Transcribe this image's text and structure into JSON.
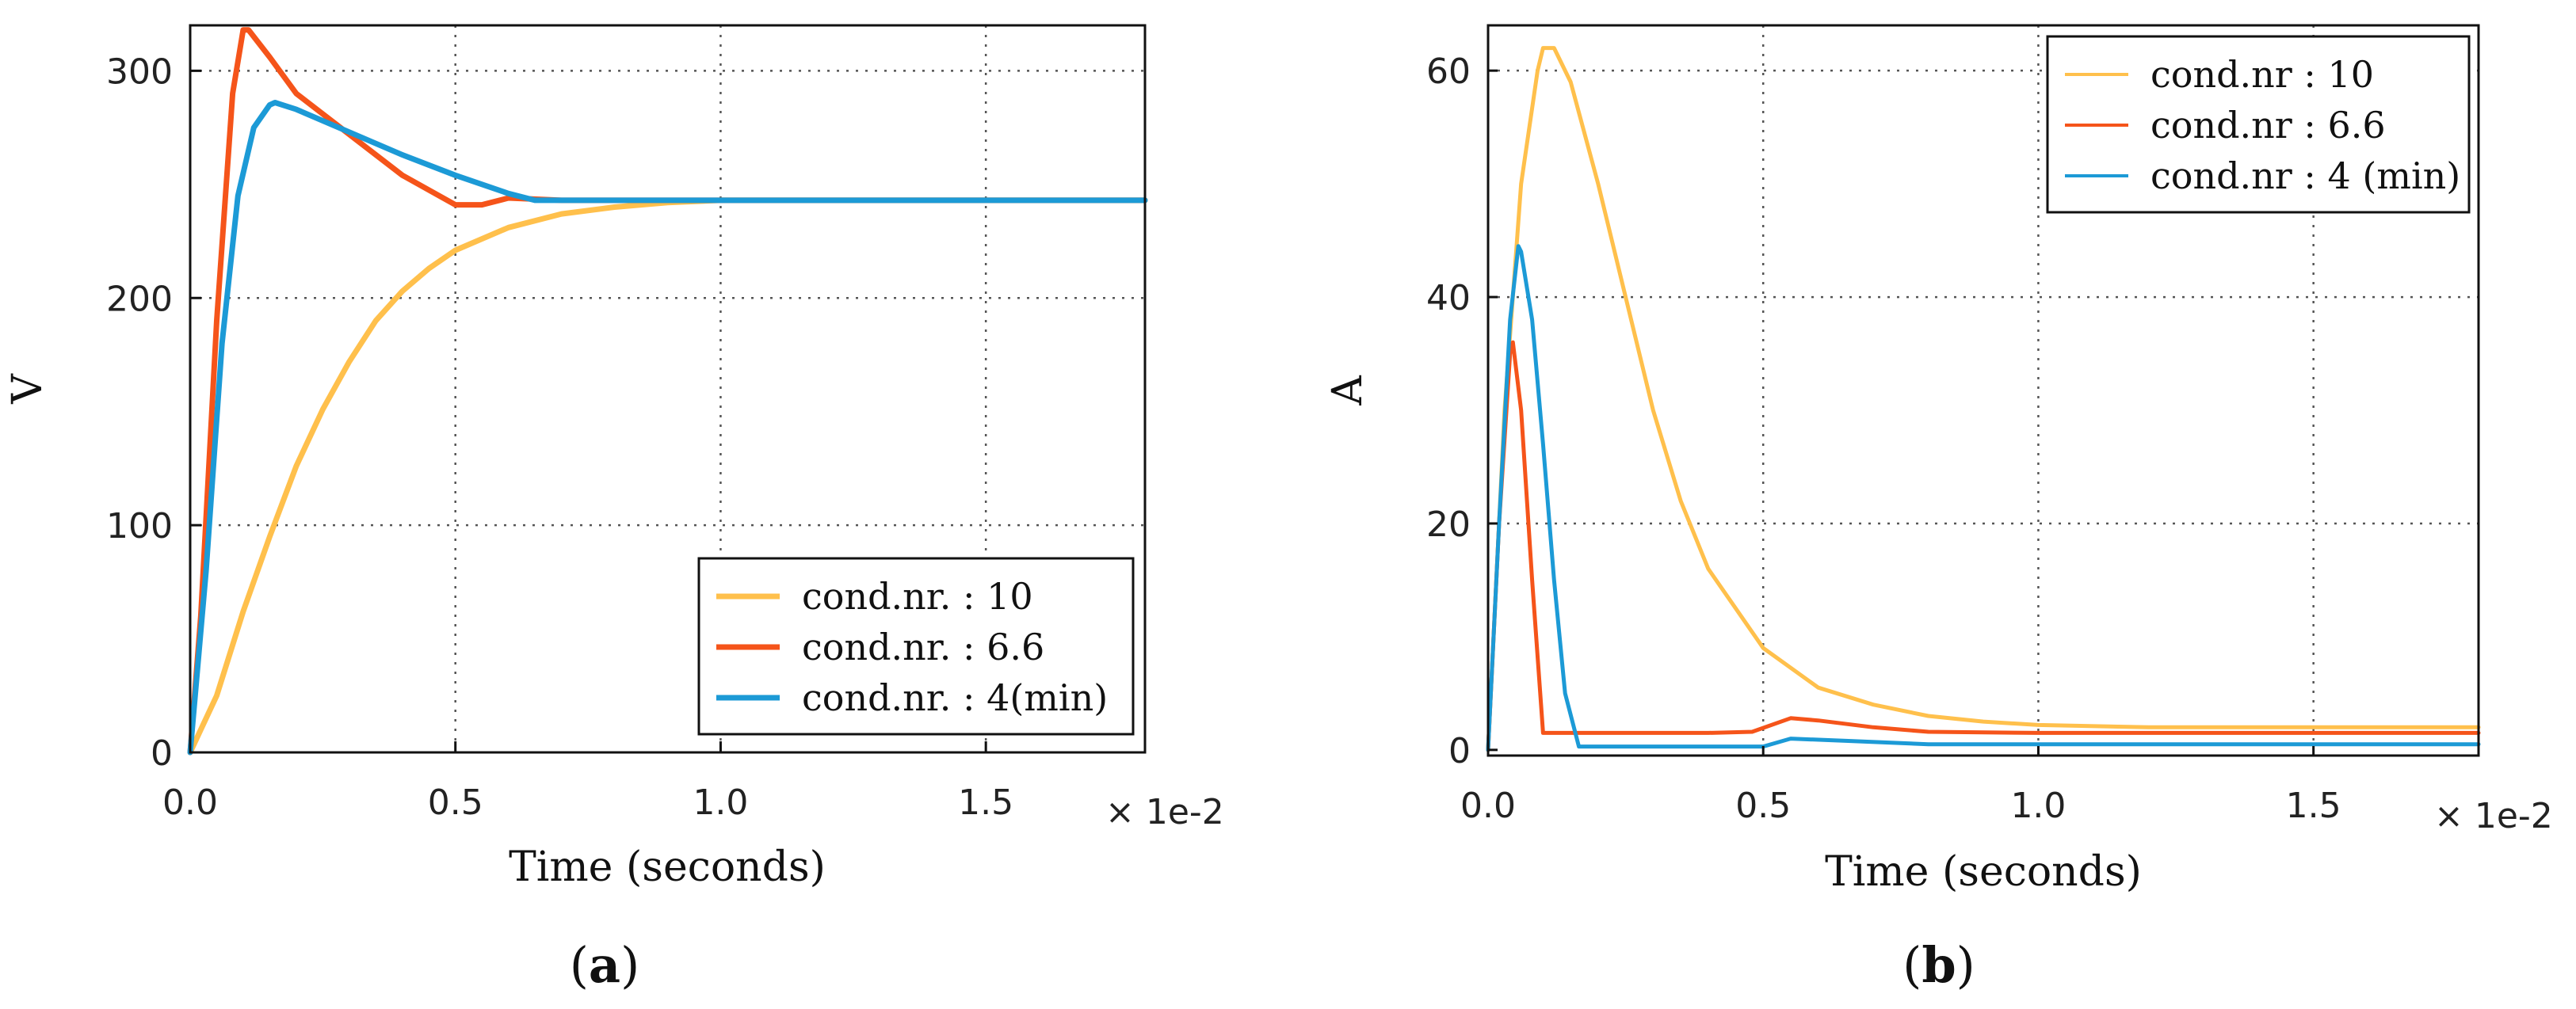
{
  "chart_data": [
    {
      "type": "line",
      "panel_label": "a",
      "xlabel": "Time (seconds)",
      "ylabel": "V",
      "x_multiplier": "× 1e-2",
      "xlim": [
        0,
        1.8
      ],
      "ylim": [
        0,
        320
      ],
      "xticks": [
        0.0,
        0.5,
        1.0,
        1.5
      ],
      "xtick_labels": [
        "0.0",
        "0.5",
        "1.0",
        "1.5"
      ],
      "yticks": [
        0,
        100,
        200,
        300
      ],
      "ytick_labels": [
        "0",
        "100",
        "200",
        "300"
      ],
      "grid": true,
      "legend_position": "lower-right",
      "series": [
        {
          "name": "cond.nr. : 10",
          "color": "#FFC04C",
          "x": [
            0,
            0.05,
            0.1,
            0.15,
            0.2,
            0.25,
            0.3,
            0.35,
            0.4,
            0.45,
            0.5,
            0.6,
            0.7,
            0.8,
            0.9,
            1.0,
            1.2,
            1.5,
            1.8
          ],
          "y": [
            0,
            25,
            62,
            95,
            126,
            151,
            172,
            190,
            203,
            213,
            221,
            231,
            237,
            240,
            242,
            243,
            243,
            243,
            243
          ]
        },
        {
          "name": "cond.nr. : 6.6",
          "color": "#F5541A",
          "x": [
            0,
            0.02,
            0.05,
            0.08,
            0.1,
            0.11,
            0.15,
            0.2,
            0.3,
            0.4,
            0.5,
            0.55,
            0.6,
            0.7,
            0.9,
            1.2,
            1.8
          ],
          "y": [
            0,
            60,
            190,
            290,
            318,
            318,
            306,
            290,
            272,
            254,
            241,
            241,
            244,
            243,
            243,
            243,
            243
          ]
        },
        {
          "name": "cond.nr. : 4(min)",
          "color": "#1C9AD6",
          "x": [
            0,
            0.03,
            0.06,
            0.09,
            0.12,
            0.15,
            0.16,
            0.2,
            0.3,
            0.4,
            0.5,
            0.6,
            0.65,
            0.8,
            1.0,
            1.8
          ],
          "y": [
            0,
            80,
            180,
            245,
            275,
            285,
            286,
            283,
            273,
            263,
            254,
            246,
            243,
            243,
            243,
            243
          ]
        }
      ]
    },
    {
      "type": "line",
      "panel_label": "b",
      "xlabel": "Time (seconds)",
      "ylabel": "A",
      "x_multiplier": "× 1e-2",
      "xlim": [
        0,
        1.8
      ],
      "ylim": [
        -0.5,
        64
      ],
      "xticks": [
        0.0,
        0.5,
        1.0,
        1.5
      ],
      "xtick_labels": [
        "0.0",
        "0.5",
        "1.0",
        "1.5"
      ],
      "yticks": [
        0,
        20,
        40,
        60
      ],
      "ytick_labels": [
        "0",
        "20",
        "40",
        "60"
      ],
      "grid": true,
      "legend_position": "top-right",
      "series": [
        {
          "name": "cond.nr : 10",
          "color": "#FFC04C",
          "x": [
            0,
            0.03,
            0.06,
            0.09,
            0.1,
            0.12,
            0.15,
            0.2,
            0.25,
            0.3,
            0.35,
            0.4,
            0.5,
            0.6,
            0.7,
            0.8,
            0.9,
            1.0,
            1.2,
            1.5,
            1.8
          ],
          "y": [
            0,
            30,
            50,
            60,
            62,
            62,
            59,
            50,
            40,
            30,
            22,
            16,
            9,
            5.5,
            4,
            3,
            2.5,
            2.2,
            2,
            2,
            2
          ]
        },
        {
          "name": "cond.nr : 6.6",
          "color": "#F5541A",
          "x": [
            0,
            0.02,
            0.04,
            0.045,
            0.06,
            0.08,
            0.1,
            0.11,
            0.2,
            0.3,
            0.4,
            0.48,
            0.55,
            0.6,
            0.7,
            0.8,
            1.0,
            1.8
          ],
          "y": [
            0,
            20,
            35,
            36,
            30,
            15,
            1.5,
            1.5,
            1.5,
            1.5,
            1.5,
            1.6,
            2.8,
            2.6,
            2.0,
            1.6,
            1.5,
            1.5
          ]
        },
        {
          "name": "cond.nr : 4 (min)",
          "color": "#1C9AD6",
          "x": [
            0,
            0.02,
            0.04,
            0.055,
            0.06,
            0.08,
            0.1,
            0.12,
            0.14,
            0.165,
            0.3,
            0.5,
            0.55,
            0.65,
            0.8,
            1.8
          ],
          "y": [
            0,
            20,
            38,
            44.5,
            44,
            38,
            27,
            15,
            5,
            0.3,
            0.3,
            0.3,
            1.0,
            0.8,
            0.5,
            0.5
          ]
        }
      ]
    }
  ]
}
